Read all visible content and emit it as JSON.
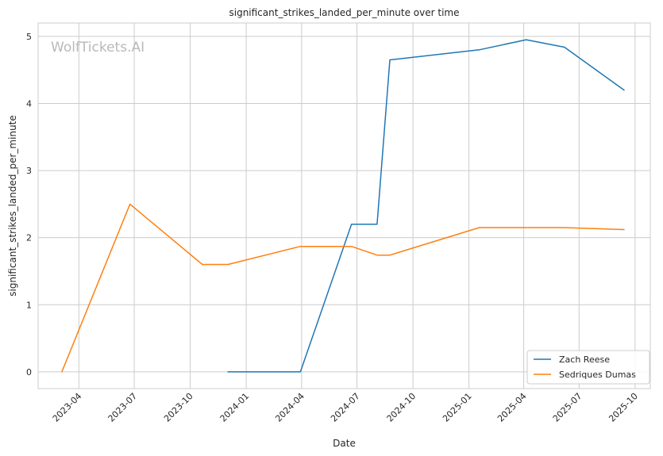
{
  "chart_data": {
    "type": "line",
    "title": "significant_strikes_landed_per_minute over time",
    "xlabel": "Date",
    "ylabel": "significant_strikes_landed_per_minute",
    "watermark": "WolfTickets.AI",
    "x_ticks": [
      "2023-04",
      "2023-07",
      "2023-10",
      "2024-01",
      "2024-04",
      "2024-07",
      "2024-10",
      "2025-01",
      "2025-04",
      "2025-07",
      "2025-10"
    ],
    "y_ticks": [
      0,
      1,
      2,
      3,
      4,
      5
    ],
    "xlim": [
      "2023-01-24",
      "2025-10-26"
    ],
    "ylim": [
      -0.25,
      5.2
    ],
    "grid": true,
    "legend_position": "lower-right",
    "series": [
      {
        "name": "Zach Reese",
        "color": "#1f77b4",
        "points": [
          {
            "x": "2023-12-02",
            "y": 0.0
          },
          {
            "x": "2024-03-30",
            "y": 0.0
          },
          {
            "x": "2024-06-22",
            "y": 2.2
          },
          {
            "x": "2024-08-03",
            "y": 2.2
          },
          {
            "x": "2024-08-24",
            "y": 4.65
          },
          {
            "x": "2025-01-18",
            "y": 4.8
          },
          {
            "x": "2025-04-05",
            "y": 4.95
          },
          {
            "x": "2025-06-07",
            "y": 4.84
          },
          {
            "x": "2025-09-13",
            "y": 4.2
          }
        ]
      },
      {
        "name": "Sedriques Dumas",
        "color": "#ff7f0e",
        "points": [
          {
            "x": "2023-03-04",
            "y": 0.0
          },
          {
            "x": "2023-06-24",
            "y": 2.5
          },
          {
            "x": "2023-10-21",
            "y": 1.6
          },
          {
            "x": "2023-12-02",
            "y": 1.6
          },
          {
            "x": "2024-03-30",
            "y": 1.87
          },
          {
            "x": "2024-06-22",
            "y": 1.87
          },
          {
            "x": "2024-08-03",
            "y": 1.74
          },
          {
            "x": "2024-08-24",
            "y": 1.74
          },
          {
            "x": "2025-01-18",
            "y": 2.15
          },
          {
            "x": "2025-06-07",
            "y": 2.15
          },
          {
            "x": "2025-09-13",
            "y": 2.12
          }
        ]
      }
    ]
  }
}
